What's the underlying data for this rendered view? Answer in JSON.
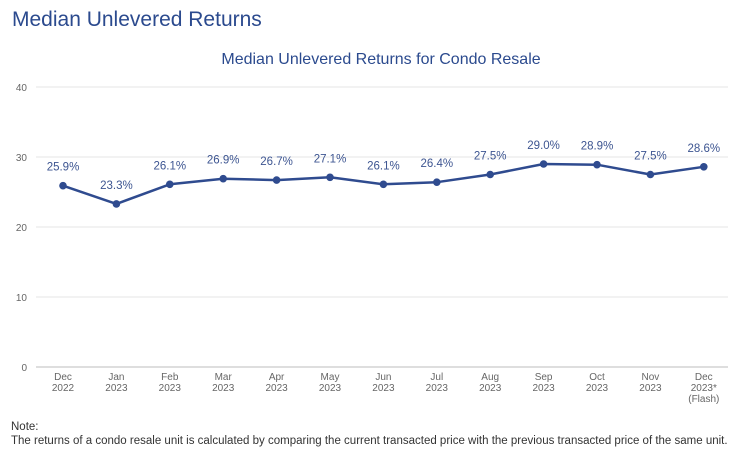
{
  "page": {
    "heading": "Median Unlevered Returns"
  },
  "note": {
    "label": "Note:",
    "text": "The returns of a condo resale unit is calculated by comparing the current transacted price with the previous transacted price of the same unit."
  },
  "colors": {
    "series": "#2f4b8f",
    "title": "#2b4a8e",
    "label": "#3d5591",
    "grid": "#e6e6e6",
    "tick": "#666666"
  },
  "chart_data": {
    "type": "line",
    "title": "Median Unlevered Returns for Condo Resale",
    "xlabel": "",
    "ylabel": "",
    "ylim": [
      0,
      40
    ],
    "yticks": [
      0,
      10,
      20,
      30,
      40
    ],
    "grid": true,
    "legend": "none",
    "categories": [
      [
        "Dec",
        "2022"
      ],
      [
        "Jan",
        "2023"
      ],
      [
        "Feb",
        "2023"
      ],
      [
        "Mar",
        "2023"
      ],
      [
        "Apr",
        "2023"
      ],
      [
        "May",
        "2023"
      ],
      [
        "Jun",
        "2023"
      ],
      [
        "Jul",
        "2023"
      ],
      [
        "Aug",
        "2023"
      ],
      [
        "Sep",
        "2023"
      ],
      [
        "Oct",
        "2023"
      ],
      [
        "Nov",
        "2023"
      ],
      [
        "Dec",
        "2023*",
        "(Flash)"
      ]
    ],
    "series": [
      {
        "values": [
          25.9,
          23.3,
          26.1,
          26.9,
          26.7,
          27.1,
          26.1,
          26.4,
          27.5,
          29.0,
          28.9,
          27.5,
          28.6
        ],
        "labels": [
          "25.9%",
          "23.3%",
          "26.1%",
          "26.9%",
          "26.7%",
          "27.1%",
          "26.1%",
          "26.4%",
          "27.5%",
          "29.0%",
          "28.9%",
          "27.5%",
          "28.6%"
        ]
      }
    ]
  }
}
